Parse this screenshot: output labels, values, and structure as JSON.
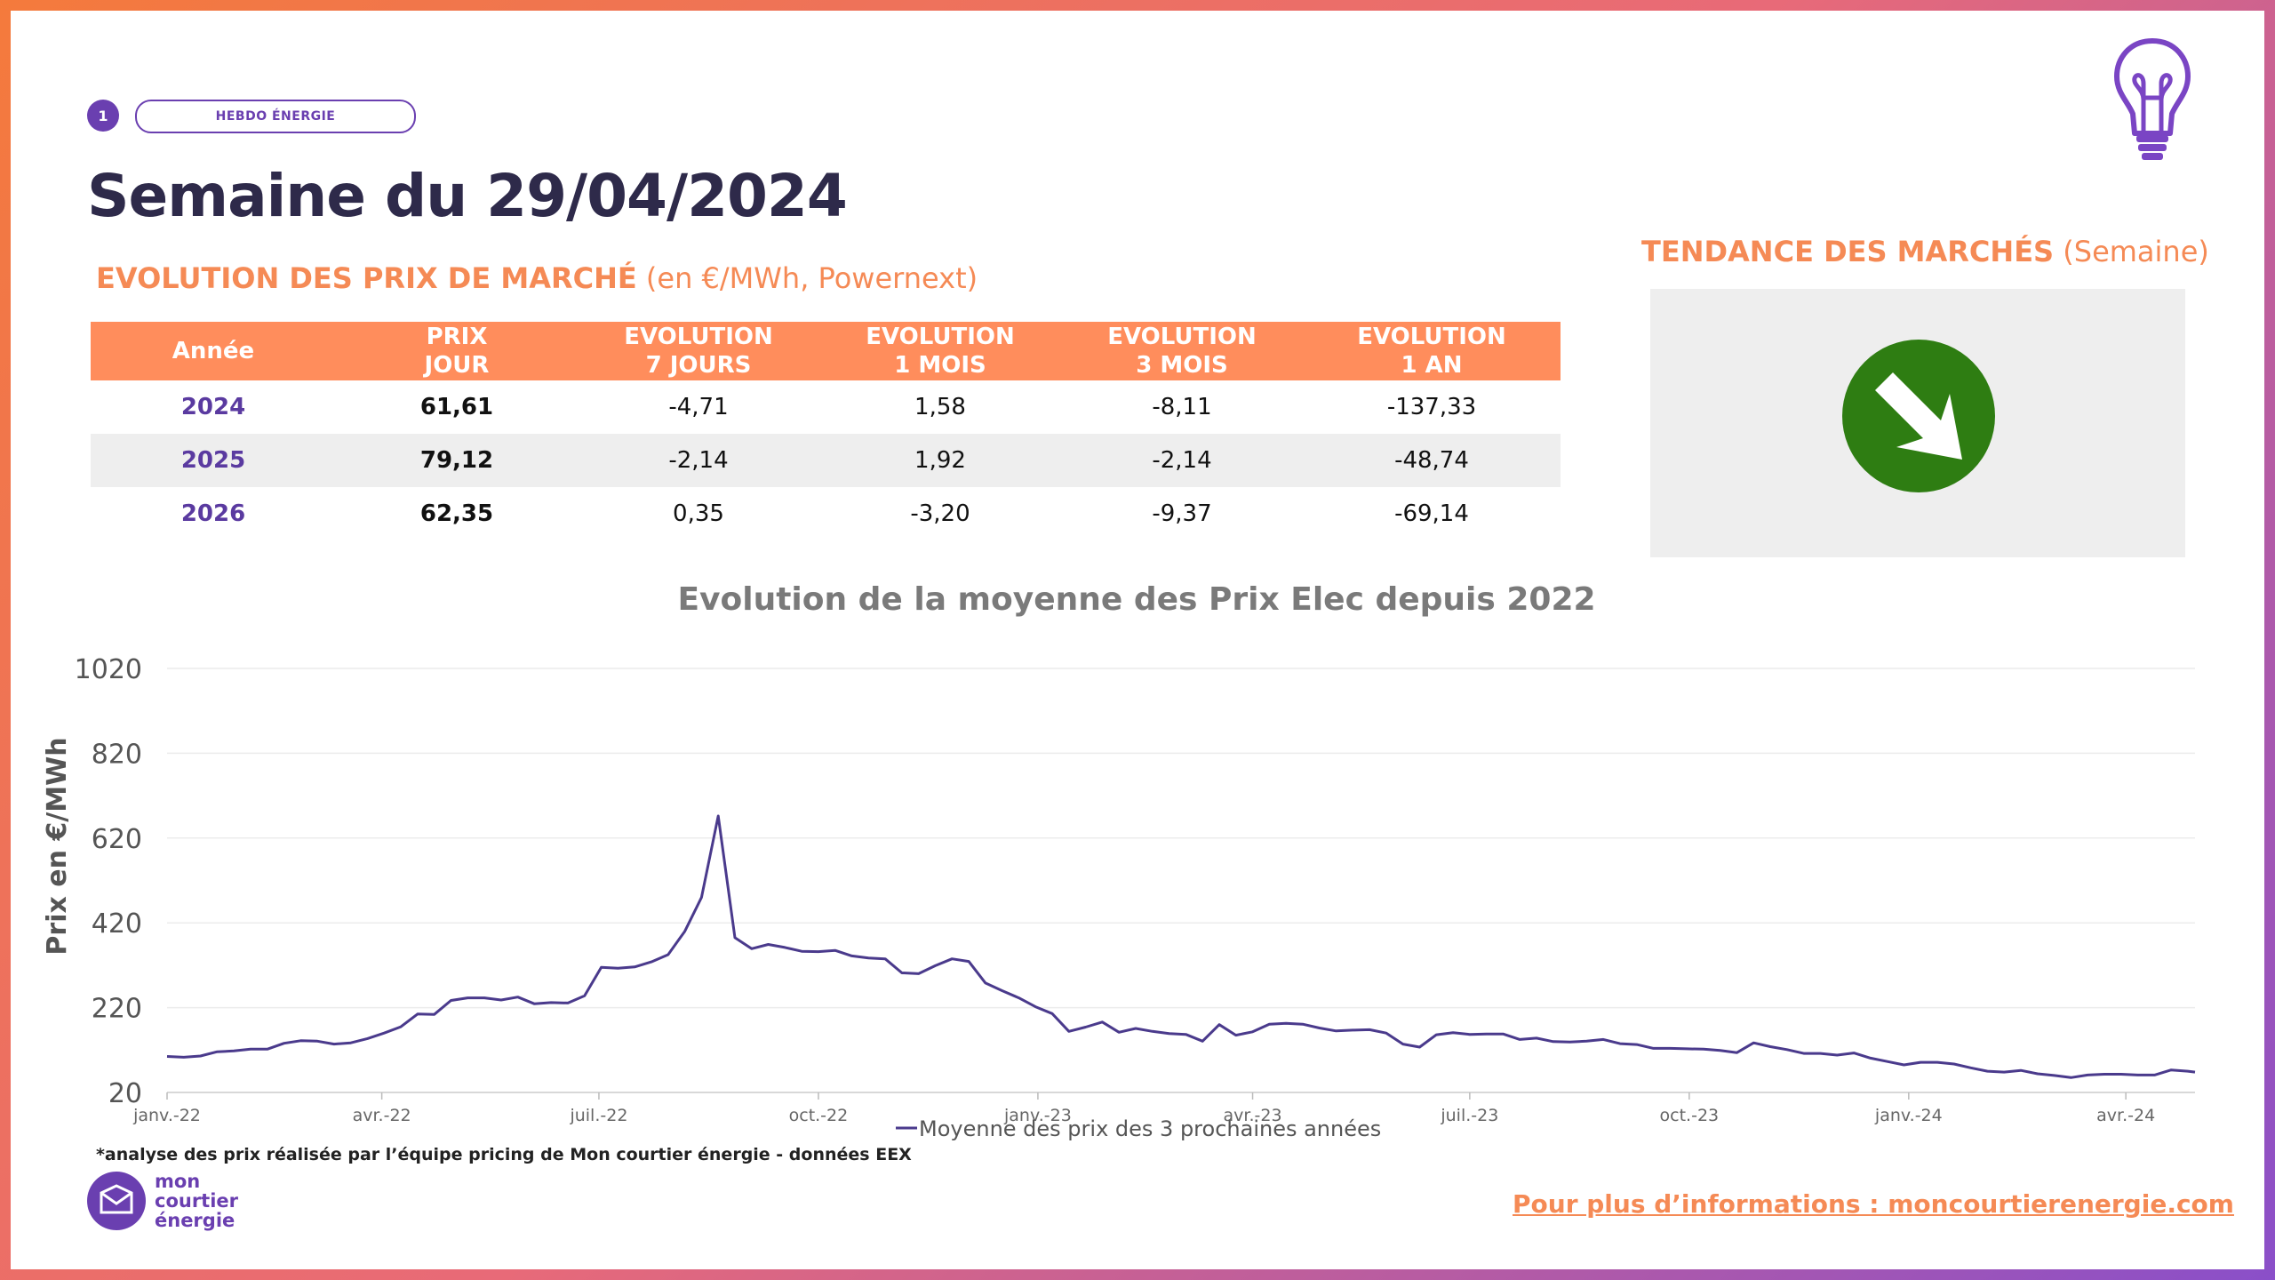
{
  "header": {
    "badge_number": "1",
    "badge_label": "HEBDO ÉNERGIE",
    "title": "Semaine du 29/04/2024"
  },
  "market_section": {
    "title_bold": "EVOLUTION DES PRIX DE MARCHÉ",
    "title_rest": "(en €/MWh, Powernext)"
  },
  "table": {
    "headers": [
      [
        "Année"
      ],
      [
        "PRIX",
        "JOUR"
      ],
      [
        "EVOLUTION",
        "7 JOURS"
      ],
      [
        "EVOLUTION",
        "1 MOIS"
      ],
      [
        "EVOLUTION",
        "3 MOIS"
      ],
      [
        "EVOLUTION",
        "1 AN"
      ]
    ],
    "rows": [
      [
        "2024",
        "61,61",
        "-4,71",
        "1,58",
        "-8,11",
        "-137,33"
      ],
      [
        "2025",
        "79,12",
        "-2,14",
        "1,92",
        "-2,14",
        "-48,74"
      ],
      [
        "2026",
        "62,35",
        "0,35",
        "-3,20",
        "-9,37",
        "-69,14"
      ]
    ]
  },
  "trend": {
    "title_bold": "TENDANCE DES MARCHÉS",
    "title_rest": "(Semaine)",
    "direction": "down",
    "icon": "arrow-down-right-icon",
    "color": "#2e7d12"
  },
  "chart_data": {
    "type": "line",
    "title": "Evolution de la moyenne des Prix Elec depuis 2022",
    "ylabel": "Prix en €/MWh",
    "xlabel": "",
    "ylim": [
      20,
      1020
    ],
    "yticks": [
      "1020",
      "820",
      "620",
      "420",
      "220",
      "20"
    ],
    "xticks": [
      "janv.-22",
      "avr.-22",
      "juil.-22",
      "oct.-22",
      "janv.-23",
      "avr.-23",
      "juil.-23",
      "oct.-23",
      "janv.-24",
      "avr.-24"
    ],
    "grid": true,
    "legend_position": "bottom",
    "series": [
      {
        "name": "Moyenne des prix des 3 prochaines années",
        "color": "#4a3a8c",
        "points": [
          [
            "2022-01-01",
            105
          ],
          [
            "2022-01-08",
            103
          ],
          [
            "2022-01-15",
            106
          ],
          [
            "2022-01-22",
            116
          ],
          [
            "2022-01-29",
            118
          ],
          [
            "2022-02-05",
            122
          ],
          [
            "2022-02-12",
            122
          ],
          [
            "2022-02-19",
            136
          ],
          [
            "2022-02-26",
            142
          ],
          [
            "2022-03-05",
            141
          ],
          [
            "2022-03-12",
            134
          ],
          [
            "2022-03-19",
            137
          ],
          [
            "2022-03-26",
            147
          ],
          [
            "2022-04-02",
            160
          ],
          [
            "2022-04-09",
            175
          ],
          [
            "2022-04-16",
            205
          ],
          [
            "2022-04-23",
            204
          ],
          [
            "2022-04-30",
            237
          ],
          [
            "2022-05-07",
            243
          ],
          [
            "2022-05-14",
            243
          ],
          [
            "2022-05-21",
            238
          ],
          [
            "2022-05-28",
            245
          ],
          [
            "2022-06-04",
            229
          ],
          [
            "2022-06-11",
            232
          ],
          [
            "2022-06-18",
            231
          ],
          [
            "2022-06-25",
            248
          ],
          [
            "2022-07-02",
            315
          ],
          [
            "2022-07-09",
            313
          ],
          [
            "2022-07-16",
            316
          ],
          [
            "2022-07-23",
            328
          ],
          [
            "2022-07-30",
            345
          ],
          [
            "2022-08-06",
            400
          ],
          [
            "2022-08-13",
            480
          ],
          [
            "2022-08-20",
            672
          ],
          [
            "2022-08-27",
            385
          ],
          [
            "2022-09-03",
            359
          ],
          [
            "2022-09-10",
            369
          ],
          [
            "2022-09-17",
            362
          ],
          [
            "2022-09-24",
            353
          ],
          [
            "2022-10-01",
            352
          ],
          [
            "2022-10-08",
            355
          ],
          [
            "2022-10-15",
            342
          ],
          [
            "2022-10-22",
            337
          ],
          [
            "2022-10-29",
            335
          ],
          [
            "2022-11-05",
            302
          ],
          [
            "2022-11-12",
            300
          ],
          [
            "2022-11-19",
            319
          ],
          [
            "2022-11-26",
            335
          ],
          [
            "2022-12-03",
            329
          ],
          [
            "2022-12-10",
            278
          ],
          [
            "2022-12-17",
            260
          ],
          [
            "2022-12-24",
            243
          ],
          [
            "2022-12-31",
            222
          ],
          [
            "2023-01-07",
            206
          ],
          [
            "2023-01-14",
            164
          ],
          [
            "2023-01-21",
            174
          ],
          [
            "2023-01-28",
            186
          ],
          [
            "2023-02-04",
            162
          ],
          [
            "2023-02-11",
            171
          ],
          [
            "2023-02-18",
            164
          ],
          [
            "2023-02-25",
            159
          ],
          [
            "2023-03-04",
            157
          ],
          [
            "2023-03-11",
            141
          ],
          [
            "2023-03-18",
            180
          ],
          [
            "2023-03-25",
            155
          ],
          [
            "2023-04-01",
            163
          ],
          [
            "2023-04-08",
            181
          ],
          [
            "2023-04-15",
            183
          ],
          [
            "2023-04-22",
            181
          ],
          [
            "2023-04-29",
            172
          ],
          [
            "2023-05-06",
            165
          ],
          [
            "2023-05-13",
            167
          ],
          [
            "2023-05-20",
            168
          ],
          [
            "2023-05-27",
            160
          ],
          [
            "2023-06-03",
            134
          ],
          [
            "2023-06-10",
            127
          ],
          [
            "2023-06-17",
            156
          ],
          [
            "2023-06-24",
            161
          ],
          [
            "2023-07-01",
            157
          ],
          [
            "2023-07-08",
            158
          ],
          [
            "2023-07-15",
            158
          ],
          [
            "2023-07-22",
            145
          ],
          [
            "2023-07-29",
            148
          ],
          [
            "2023-08-05",
            140
          ],
          [
            "2023-08-12",
            139
          ],
          [
            "2023-08-19",
            141
          ],
          [
            "2023-08-26",
            145
          ],
          [
            "2023-09-02",
            135
          ],
          [
            "2023-09-09",
            133
          ],
          [
            "2023-09-16",
            124
          ],
          [
            "2023-09-23",
            124
          ],
          [
            "2023-09-30",
            123
          ],
          [
            "2023-10-07",
            122
          ],
          [
            "2023-10-14",
            119
          ],
          [
            "2023-10-21",
            114
          ],
          [
            "2023-10-28",
            137
          ],
          [
            "2023-11-04",
            128
          ],
          [
            "2023-11-11",
            121
          ],
          [
            "2023-11-18",
            112
          ],
          [
            "2023-11-25",
            112
          ],
          [
            "2023-12-02",
            108
          ],
          [
            "2023-12-09",
            113
          ],
          [
            "2023-12-16",
            101
          ],
          [
            "2023-12-23",
            93
          ],
          [
            "2023-12-30",
            85
          ],
          [
            "2024-01-06",
            91
          ],
          [
            "2024-01-13",
            91
          ],
          [
            "2024-01-20",
            87
          ],
          [
            "2024-01-27",
            78
          ],
          [
            "2024-02-03",
            70
          ],
          [
            "2024-02-10",
            68
          ],
          [
            "2024-02-17",
            72
          ],
          [
            "2024-02-24",
            64
          ],
          [
            "2024-03-02",
            60
          ],
          [
            "2024-03-09",
            55
          ],
          [
            "2024-03-16",
            61
          ],
          [
            "2024-03-23",
            63
          ],
          [
            "2024-03-30",
            63
          ],
          [
            "2024-04-06",
            61
          ],
          [
            "2024-04-13",
            61
          ],
          [
            "2024-04-20",
            73
          ],
          [
            "2024-04-27",
            70
          ],
          [
            "2024-04-30",
            68
          ]
        ]
      }
    ]
  },
  "footer": {
    "footnote": "*analyse des prix réalisée par l’équipe pricing de Mon courtier énergie -  données EEX",
    "logo_lines": [
      "mon",
      "courtier",
      "énergie"
    ],
    "more_info": "Pour plus d’informations : moncourtierenergie.com"
  },
  "colors": {
    "accent_orange": "#ff8d5c",
    "title_orange": "#f58a55",
    "brand_purple": "#6a3fb0",
    "title_dark": "#2e2a4a"
  }
}
